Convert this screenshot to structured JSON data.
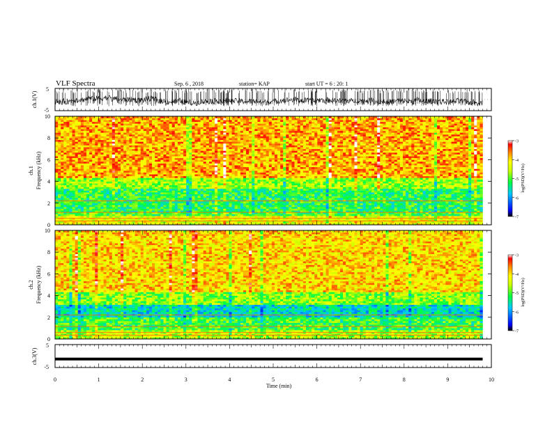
{
  "header": {
    "title": "VLF Spectra",
    "date": "Sep. 6 , 2018",
    "station": "station= KAP",
    "start_ut": "start UT =  6 : 20: 1"
  },
  "colorbar_label": "log(PSD)(V²/Hz)",
  "chart_data": [
    {
      "id": "ch1-waveform",
      "type": "line",
      "ylabel": "ch.1(V)",
      "ylim": [
        -5,
        5
      ],
      "yticks": [
        "5",
        "-5"
      ],
      "xlim": [
        0,
        10
      ],
      "trace_end_min": 9.8,
      "series": [
        {
          "values_note_min": 9.8,
          "amplitude_band": [
            -2.5,
            2.5
          ]
        }
      ]
    },
    {
      "id": "ch1-spectrogram",
      "type": "heatmap",
      "ylabel": "ch.1\nFrequency (kHz)",
      "ylim": [
        0,
        10
      ],
      "yticks": [
        "0",
        "2",
        "4",
        "6",
        "8",
        "10"
      ],
      "xlim": [
        0,
        10
      ],
      "data_end_min": 9.8,
      "bands_khz": [
        {
          "from": 0,
          "to": 0.8,
          "level": -4.3
        },
        {
          "from": 0.8,
          "to": 1.2,
          "level": -5.0
        },
        {
          "from": 1.2,
          "to": 3.3,
          "level": -5.2
        },
        {
          "from": 3.3,
          "to": 4.3,
          "level": -4.7
        },
        {
          "from": 4.3,
          "to": 10,
          "level": -3.8
        }
      ],
      "colorbar": {
        "range": [
          -7,
          -3
        ],
        "ticks": [
          "-3",
          "-4",
          "-5",
          "-6",
          "-7"
        ]
      }
    },
    {
      "id": "ch2-spectrogram",
      "type": "heatmap",
      "ylabel": "ch.2\nFrequency (kHz)",
      "ylim": [
        0,
        10
      ],
      "yticks": [
        "0",
        "2",
        "4",
        "6",
        "8",
        "10"
      ],
      "xlim": [
        0,
        10
      ],
      "data_end_min": 9.8,
      "bands_khz": [
        {
          "from": 0,
          "to": 0.8,
          "level": -4.6
        },
        {
          "from": 0.8,
          "to": 2.0,
          "level": -5.1
        },
        {
          "from": 2.0,
          "to": 3.2,
          "level": -5.6
        },
        {
          "from": 3.2,
          "to": 4.3,
          "level": -4.8
        },
        {
          "from": 4.3,
          "to": 10,
          "level": -4.0
        }
      ],
      "colorbar": {
        "range": [
          -7,
          -3
        ],
        "ticks": [
          "-3",
          "-4",
          "-5",
          "-6",
          "-7"
        ]
      }
    },
    {
      "id": "ch3-waveform",
      "type": "line",
      "ylabel": "ch.3(V)",
      "ylim": [
        -5,
        5
      ],
      "yticks": [
        "5",
        "-5"
      ],
      "xlim": [
        0,
        10
      ],
      "level": -1.3,
      "trace_end_min": 9.8
    }
  ],
  "x_axis": {
    "label": "Time (min)",
    "ticks": [
      "0",
      "1",
      "2",
      "3",
      "4",
      "5",
      "6",
      "7",
      "8",
      "9",
      "10"
    ]
  }
}
